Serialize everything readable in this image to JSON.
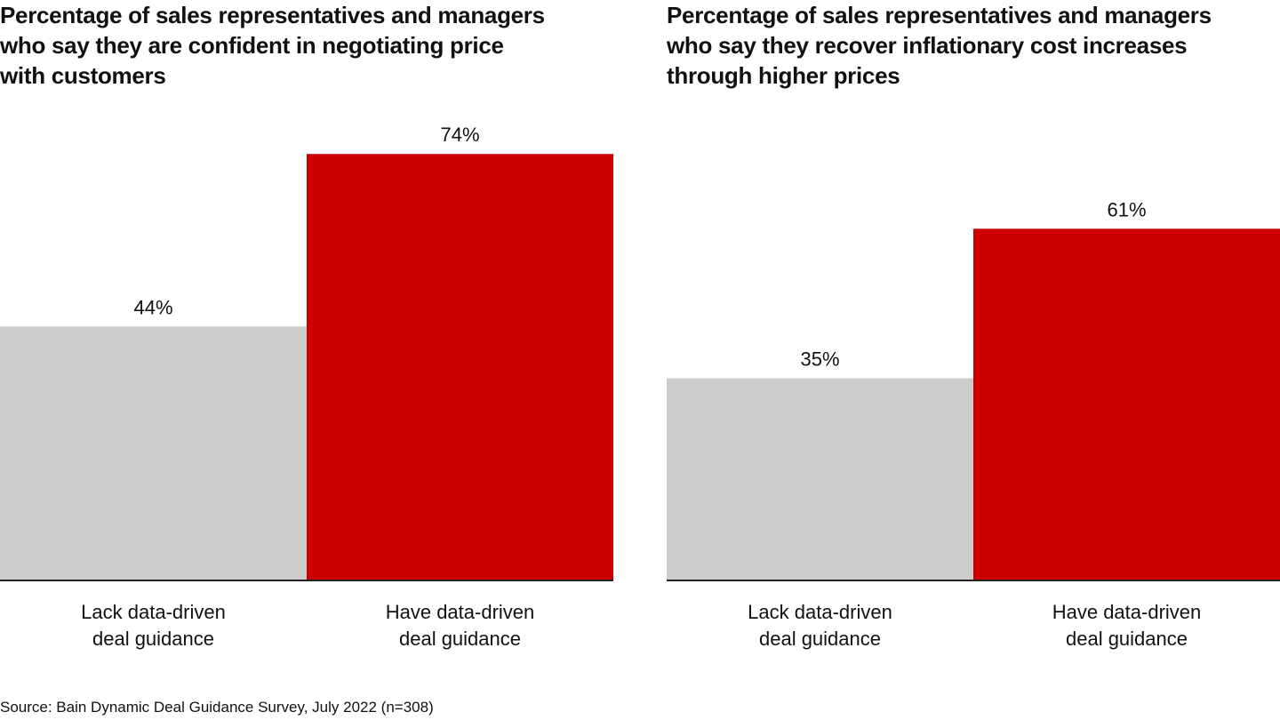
{
  "colors": {
    "lack": "#cccccc",
    "have": "#cc0000",
    "axis": "#222222"
  },
  "chart_data": [
    {
      "type": "bar",
      "title": "Percentage of sales representatives and managers\nwho say they are confident in negotiating price\nwith customers",
      "categories": [
        "Lack data-driven deal guidance",
        "Have data-driven deal guidance"
      ],
      "category_lines": [
        [
          "Lack data-driven",
          "deal guidance"
        ],
        [
          "Have data-driven",
          "deal guidance"
        ]
      ],
      "values": [
        44,
        74
      ],
      "value_labels": [
        "44%",
        "74%"
      ],
      "xlabel": "",
      "ylabel": "",
      "ylim": [
        0,
        100
      ],
      "grid": false
    },
    {
      "type": "bar",
      "title": "Percentage of sales representatives and managers\nwho say they recover inflationary cost increases\nthrough higher prices",
      "categories": [
        "Lack data-driven deal guidance",
        "Have data-driven deal guidance"
      ],
      "category_lines": [
        [
          "Lack data-driven",
          "deal guidance"
        ],
        [
          "Have data-driven",
          "deal guidance"
        ]
      ],
      "values": [
        35,
        61
      ],
      "value_labels": [
        "35%",
        "61%"
      ],
      "xlabel": "",
      "ylabel": "",
      "ylim": [
        0,
        100
      ],
      "grid": false
    }
  ],
  "source": "Source: Bain Dynamic Deal Guidance Survey, July 2022 (n=308)"
}
